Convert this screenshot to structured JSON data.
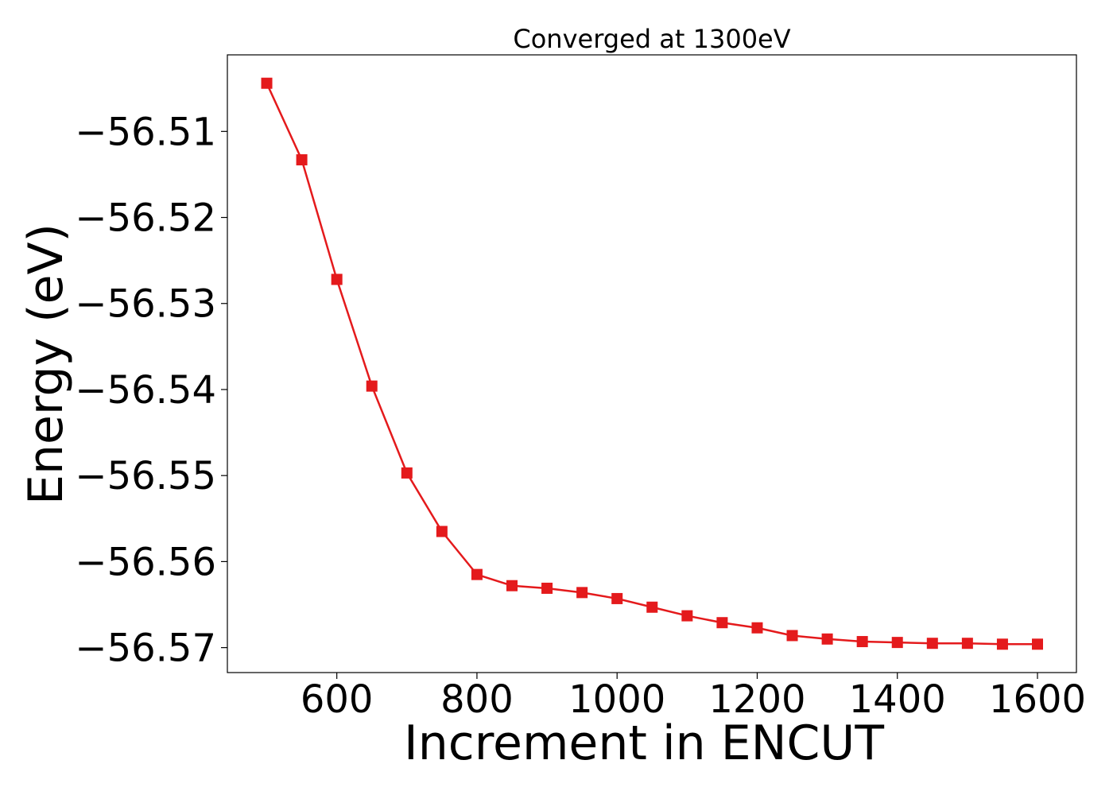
{
  "chart_data": {
    "type": "line",
    "title": "Converged at 1300eV",
    "xlabel": "Increment in ENCUT",
    "ylabel": "Energy (eV)",
    "x": [
      500,
      550,
      600,
      650,
      700,
      750,
      800,
      850,
      900,
      950,
      1000,
      1050,
      1100,
      1150,
      1200,
      1250,
      1300,
      1350,
      1400,
      1450,
      1500,
      1550,
      1600
    ],
    "series": [
      {
        "values": [
          -56.5044,
          -56.5133,
          -56.5272,
          -56.5396,
          -56.5497,
          -56.5565,
          -56.5615,
          -56.5628,
          -56.5631,
          -56.5636,
          -56.5643,
          -56.5653,
          -56.5663,
          -56.5671,
          -56.5677,
          -56.5686,
          -56.569,
          -56.5693,
          -56.5694,
          -56.5695,
          -56.5695,
          -56.5696,
          -56.5696
        ],
        "color": "#e41a1c",
        "marker": "square"
      }
    ],
    "xlim": [
      443.8,
      1655.6
    ],
    "ylim": [
      -56.5729,
      -56.5011
    ],
    "xticks": [
      600,
      800,
      1000,
      1200,
      1400,
      1600
    ],
    "xtick_labels": [
      "600",
      "800",
      "1000",
      "1200",
      "1400",
      "1600"
    ],
    "yticks": [
      -56.51,
      -56.52,
      -56.53,
      -56.54,
      -56.55,
      -56.56,
      -56.57
    ],
    "ytick_labels": [
      "−56.51",
      "−56.52",
      "−56.53",
      "−56.54",
      "−56.55",
      "−56.56",
      "−56.57"
    ],
    "grid": false,
    "legend": "none"
  }
}
